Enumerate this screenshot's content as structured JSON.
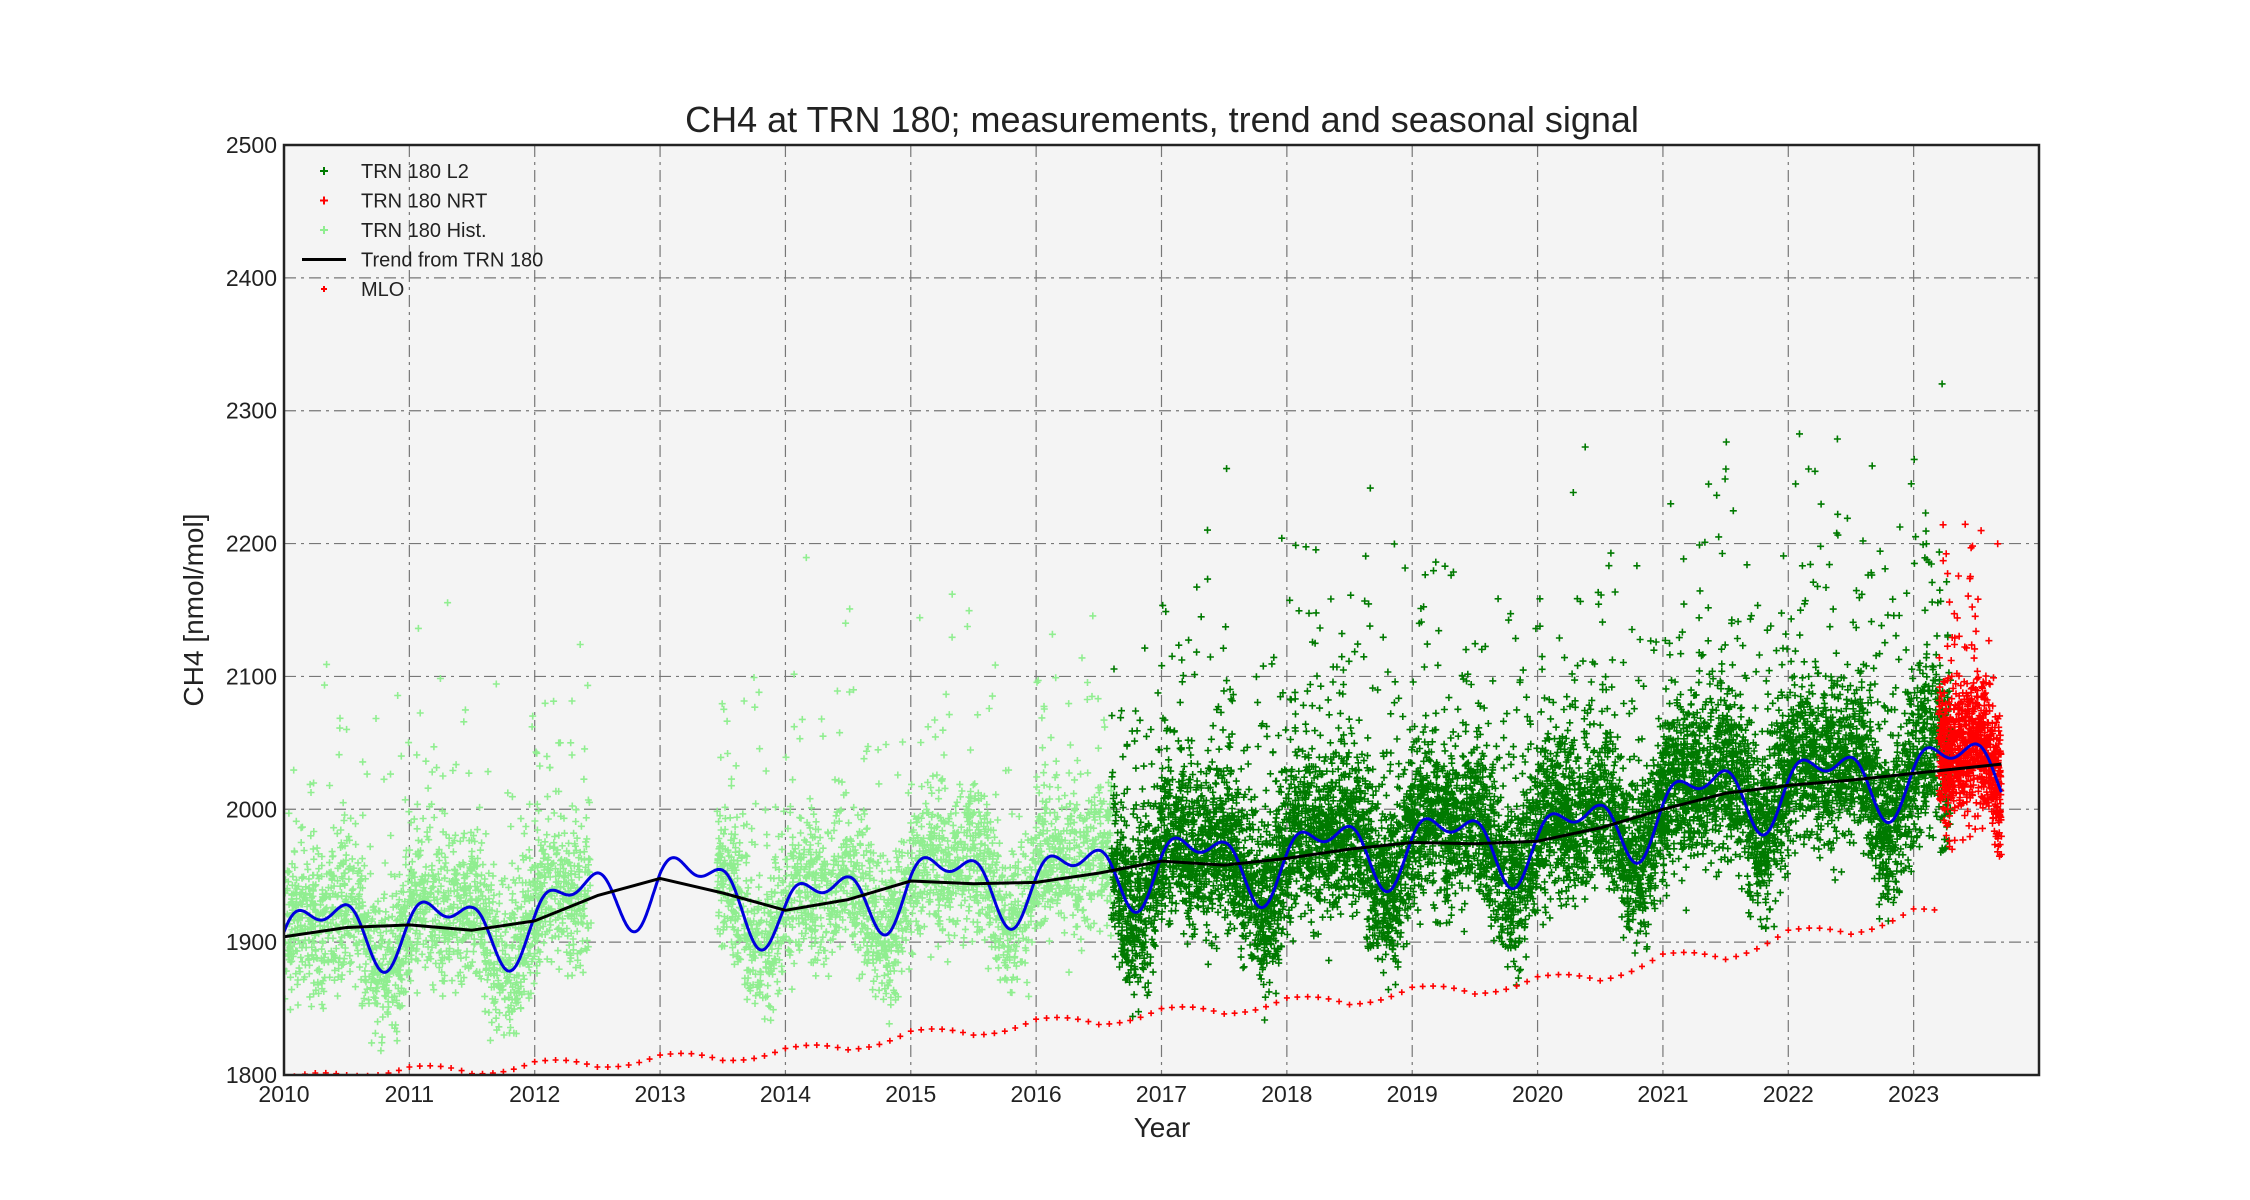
{
  "chart_data": {
    "type": "scatter",
    "title": "CH4 at TRN 180; measurements, trend and seasonal signal",
    "xlabel": "Year",
    "ylabel": "CH4 [nmol/mol]",
    "xlim": [
      2010,
      2024
    ],
    "ylim": [
      1800,
      2500
    ],
    "x_ticks": [
      "2010",
      "2011",
      "2012",
      "2013",
      "2014",
      "2015",
      "2016",
      "2017",
      "2018",
      "2019",
      "2020",
      "2021",
      "2022",
      "2023"
    ],
    "y_ticks": [
      "1800",
      "1900",
      "2000",
      "2100",
      "2200",
      "2300",
      "2400",
      "2500"
    ],
    "grid": true,
    "legend_position": "top-left",
    "colors": {
      "l2": "#007a00",
      "nrt": "#ff0000",
      "hist": "#90ee90",
      "trend": "#000000",
      "seasonal": "#0000dd",
      "mlo": "#ff0000",
      "plot_bg": "#f4f4f4",
      "grid": "#777777"
    },
    "series": [
      {
        "name": "TRN 180 L2",
        "kind": "points",
        "x_range": [
          2016.6,
          2023.3
        ]
      },
      {
        "name": "TRN 180 NRT",
        "kind": "points",
        "x_range": [
          2023.2,
          2023.7
        ]
      },
      {
        "name": "TRN 180 Hist.",
        "kind": "points",
        "x_range": [
          2010.0,
          2016.6
        ]
      },
      {
        "name": "Trend from TRN 180",
        "kind": "line",
        "points": [
          [
            2010.0,
            1904
          ],
          [
            2010.5,
            1911
          ],
          [
            2011.0,
            1913
          ],
          [
            2011.5,
            1909
          ],
          [
            2012.0,
            1916
          ],
          [
            2012.5,
            1935
          ],
          [
            2013.0,
            1948
          ],
          [
            2013.5,
            1937
          ],
          [
            2014.0,
            1924
          ],
          [
            2014.5,
            1932
          ],
          [
            2015.0,
            1946
          ],
          [
            2015.5,
            1944
          ],
          [
            2016.0,
            1945
          ],
          [
            2016.5,
            1952
          ],
          [
            2017.0,
            1961
          ],
          [
            2017.5,
            1958
          ],
          [
            2018.0,
            1963
          ],
          [
            2018.5,
            1970
          ],
          [
            2019.0,
            1975
          ],
          [
            2019.5,
            1974
          ],
          [
            2020.0,
            1976
          ],
          [
            2020.5,
            1986
          ],
          [
            2021.0,
            2000
          ],
          [
            2021.5,
            2012
          ],
          [
            2022.0,
            2018
          ],
          [
            2022.5,
            2022
          ],
          [
            2023.0,
            2027
          ],
          [
            2023.5,
            2032
          ],
          [
            2023.7,
            2034
          ]
        ]
      },
      {
        "name": "",
        "kind": "seasonal-line",
        "baseline_x": [
          2010.0,
          2012.4,
          2013.5,
          2016.6,
          2023.7
        ],
        "amplitude": 35,
        "gap": [
          2012.45,
          2013.45
        ]
      },
      {
        "name": "MLO",
        "kind": "points",
        "points": [
          [
            2010.0,
            1797
          ],
          [
            2010.5,
            1800
          ],
          [
            2011.0,
            1806
          ],
          [
            2011.5,
            1801
          ],
          [
            2012.0,
            1810
          ],
          [
            2012.5,
            1806
          ],
          [
            2013.0,
            1815
          ],
          [
            2013.5,
            1811
          ],
          [
            2014.0,
            1820
          ],
          [
            2014.5,
            1819
          ],
          [
            2015.0,
            1833
          ],
          [
            2015.5,
            1830
          ],
          [
            2016.0,
            1842
          ],
          [
            2016.5,
            1838
          ],
          [
            2017.0,
            1850
          ],
          [
            2017.5,
            1846
          ],
          [
            2018.0,
            1858
          ],
          [
            2018.5,
            1853
          ],
          [
            2019.0,
            1866
          ],
          [
            2019.5,
            1861
          ],
          [
            2020.0,
            1874
          ],
          [
            2020.5,
            1871
          ],
          [
            2021.0,
            1891
          ],
          [
            2021.5,
            1887
          ],
          [
            2022.0,
            1909
          ],
          [
            2022.5,
            1906
          ],
          [
            2023.0,
            1925
          ],
          [
            2023.2,
            1921
          ]
        ]
      }
    ]
  }
}
